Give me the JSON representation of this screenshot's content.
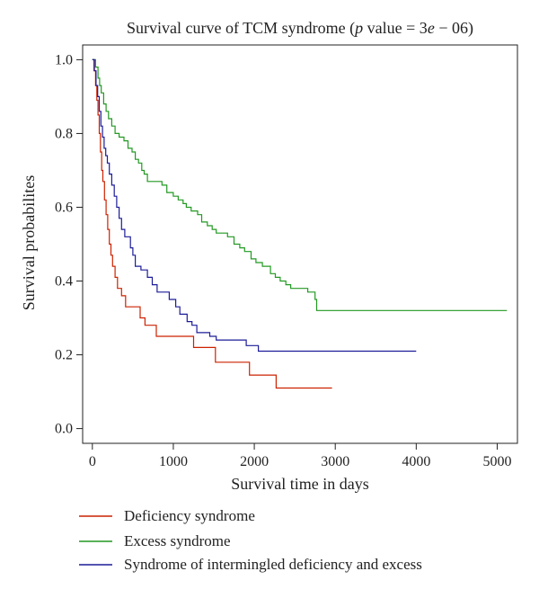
{
  "chart_data": {
    "type": "line",
    "title": "Survival curve of TCM syndrome (p value = 3e − 06)",
    "title_parts": {
      "prefix": "Survival curve of TCM syndrome (",
      "p": "p",
      "middle": " value = 3",
      "e": "e",
      "suffix": " − 06)"
    },
    "xlabel": "Survival time in days",
    "ylabel": "Survival probabilites",
    "xlim": [
      -120,
      5250
    ],
    "ylim": [
      -0.04,
      1.04
    ],
    "x_ticks": [
      {
        "value": 0,
        "label": "0"
      },
      {
        "value": 1000,
        "label": "1000"
      },
      {
        "value": 2000,
        "label": "2000"
      },
      {
        "value": 3000,
        "label": "3000"
      },
      {
        "value": 4000,
        "label": "4000"
      },
      {
        "value": 5000,
        "label": "5000"
      }
    ],
    "y_ticks": [
      {
        "value": 0.0,
        "label": "0.0"
      },
      {
        "value": 0.2,
        "label": "0.2"
      },
      {
        "value": 0.4,
        "label": "0.4"
      },
      {
        "value": 0.6,
        "label": "0.6"
      },
      {
        "value": 0.8,
        "label": "0.8"
      },
      {
        "value": 1.0,
        "label": "1.0"
      }
    ],
    "legend_position": "bottom",
    "series": [
      {
        "name": "Deficiency syndrome",
        "color": "#cc2200",
        "steps": [
          [
            0,
            1.0
          ],
          [
            20,
            0.97
          ],
          [
            40,
            0.93
          ],
          [
            55,
            0.89
          ],
          [
            70,
            0.85
          ],
          [
            85,
            0.8
          ],
          [
            100,
            0.75
          ],
          [
            115,
            0.7
          ],
          [
            130,
            0.67
          ],
          [
            150,
            0.62
          ],
          [
            170,
            0.58
          ],
          [
            190,
            0.54
          ],
          [
            210,
            0.5
          ],
          [
            230,
            0.47
          ],
          [
            250,
            0.44
          ],
          [
            280,
            0.41
          ],
          [
            310,
            0.38
          ],
          [
            360,
            0.36
          ],
          [
            410,
            0.33
          ],
          [
            590,
            0.3
          ],
          [
            650,
            0.28
          ],
          [
            790,
            0.25
          ],
          [
            1250,
            0.22
          ],
          [
            1520,
            0.18
          ],
          [
            1940,
            0.145
          ],
          [
            2270,
            0.11
          ],
          [
            2960,
            0.11
          ]
        ]
      },
      {
        "name": "Excess syndrome",
        "color": "#229922",
        "steps": [
          [
            0,
            1.0
          ],
          [
            40,
            0.98
          ],
          [
            70,
            0.95
          ],
          [
            90,
            0.93
          ],
          [
            110,
            0.91
          ],
          [
            140,
            0.88
          ],
          [
            170,
            0.86
          ],
          [
            200,
            0.84
          ],
          [
            240,
            0.82
          ],
          [
            280,
            0.8
          ],
          [
            330,
            0.79
          ],
          [
            390,
            0.78
          ],
          [
            440,
            0.76
          ],
          [
            490,
            0.75
          ],
          [
            530,
            0.73
          ],
          [
            570,
            0.72
          ],
          [
            610,
            0.7
          ],
          [
            640,
            0.69
          ],
          [
            680,
            0.67
          ],
          [
            860,
            0.66
          ],
          [
            920,
            0.64
          ],
          [
            1000,
            0.63
          ],
          [
            1060,
            0.62
          ],
          [
            1120,
            0.61
          ],
          [
            1160,
            0.6
          ],
          [
            1220,
            0.59
          ],
          [
            1300,
            0.58
          ],
          [
            1350,
            0.56
          ],
          [
            1420,
            0.55
          ],
          [
            1480,
            0.54
          ],
          [
            1530,
            0.53
          ],
          [
            1670,
            0.52
          ],
          [
            1750,
            0.5
          ],
          [
            1820,
            0.49
          ],
          [
            1880,
            0.48
          ],
          [
            1960,
            0.46
          ],
          [
            2020,
            0.45
          ],
          [
            2100,
            0.44
          ],
          [
            2200,
            0.42
          ],
          [
            2260,
            0.41
          ],
          [
            2320,
            0.4
          ],
          [
            2390,
            0.39
          ],
          [
            2450,
            0.38
          ],
          [
            2660,
            0.37
          ],
          [
            2750,
            0.35
          ],
          [
            2770,
            0.32
          ],
          [
            5120,
            0.32
          ]
        ]
      },
      {
        "name": "Syndrome of intermingled deficiency and excess",
        "color": "#1c1c99",
        "steps": [
          [
            0,
            1.0
          ],
          [
            25,
            0.97
          ],
          [
            45,
            0.93
          ],
          [
            65,
            0.9
          ],
          [
            85,
            0.86
          ],
          [
            105,
            0.82
          ],
          [
            125,
            0.79
          ],
          [
            145,
            0.76
          ],
          [
            165,
            0.74
          ],
          [
            185,
            0.72
          ],
          [
            210,
            0.69
          ],
          [
            240,
            0.66
          ],
          [
            270,
            0.63
          ],
          [
            300,
            0.6
          ],
          [
            330,
            0.57
          ],
          [
            360,
            0.54
          ],
          [
            400,
            0.52
          ],
          [
            470,
            0.49
          ],
          [
            500,
            0.47
          ],
          [
            530,
            0.44
          ],
          [
            600,
            0.43
          ],
          [
            680,
            0.41
          ],
          [
            740,
            0.39
          ],
          [
            800,
            0.37
          ],
          [
            950,
            0.35
          ],
          [
            1030,
            0.33
          ],
          [
            1080,
            0.31
          ],
          [
            1170,
            0.29
          ],
          [
            1230,
            0.28
          ],
          [
            1290,
            0.26
          ],
          [
            1450,
            0.25
          ],
          [
            1530,
            0.24
          ],
          [
            1900,
            0.225
          ],
          [
            2050,
            0.21
          ],
          [
            4000,
            0.21
          ]
        ]
      }
    ]
  }
}
